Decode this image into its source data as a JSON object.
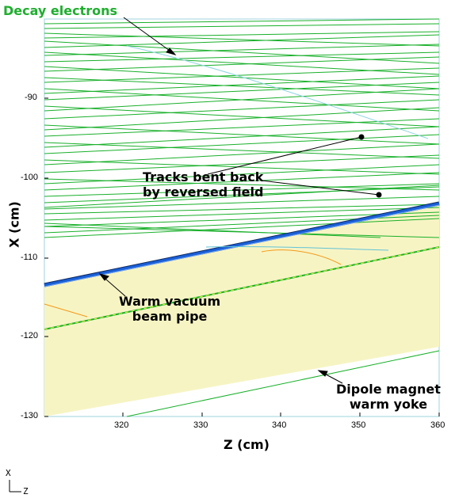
{
  "annotations": {
    "decay": "Decay electrons",
    "tracks": [
      "Tracks bent back",
      "by reversed field"
    ],
    "pipe": [
      "Warm vacuum",
      "beam pipe"
    ],
    "yoke": [
      "Dipole magnet",
      "warm yoke"
    ]
  },
  "axes": {
    "xlabel": "Z (cm)",
    "ylabel": "X (cm)",
    "xticks": [
      "320",
      "330",
      "340",
      "350",
      "360"
    ],
    "yticks": [
      "-90",
      "-100",
      "-110",
      "-120",
      "-130"
    ]
  },
  "compass": {
    "up": "X",
    "right": "Z"
  },
  "colors": {
    "track": "#19b02a",
    "yoke_fill": "#f7f4c4",
    "pipe_fill": "#1b5fd6",
    "frame": "#9fd3de",
    "orange_track": "#f39a1a"
  }
}
